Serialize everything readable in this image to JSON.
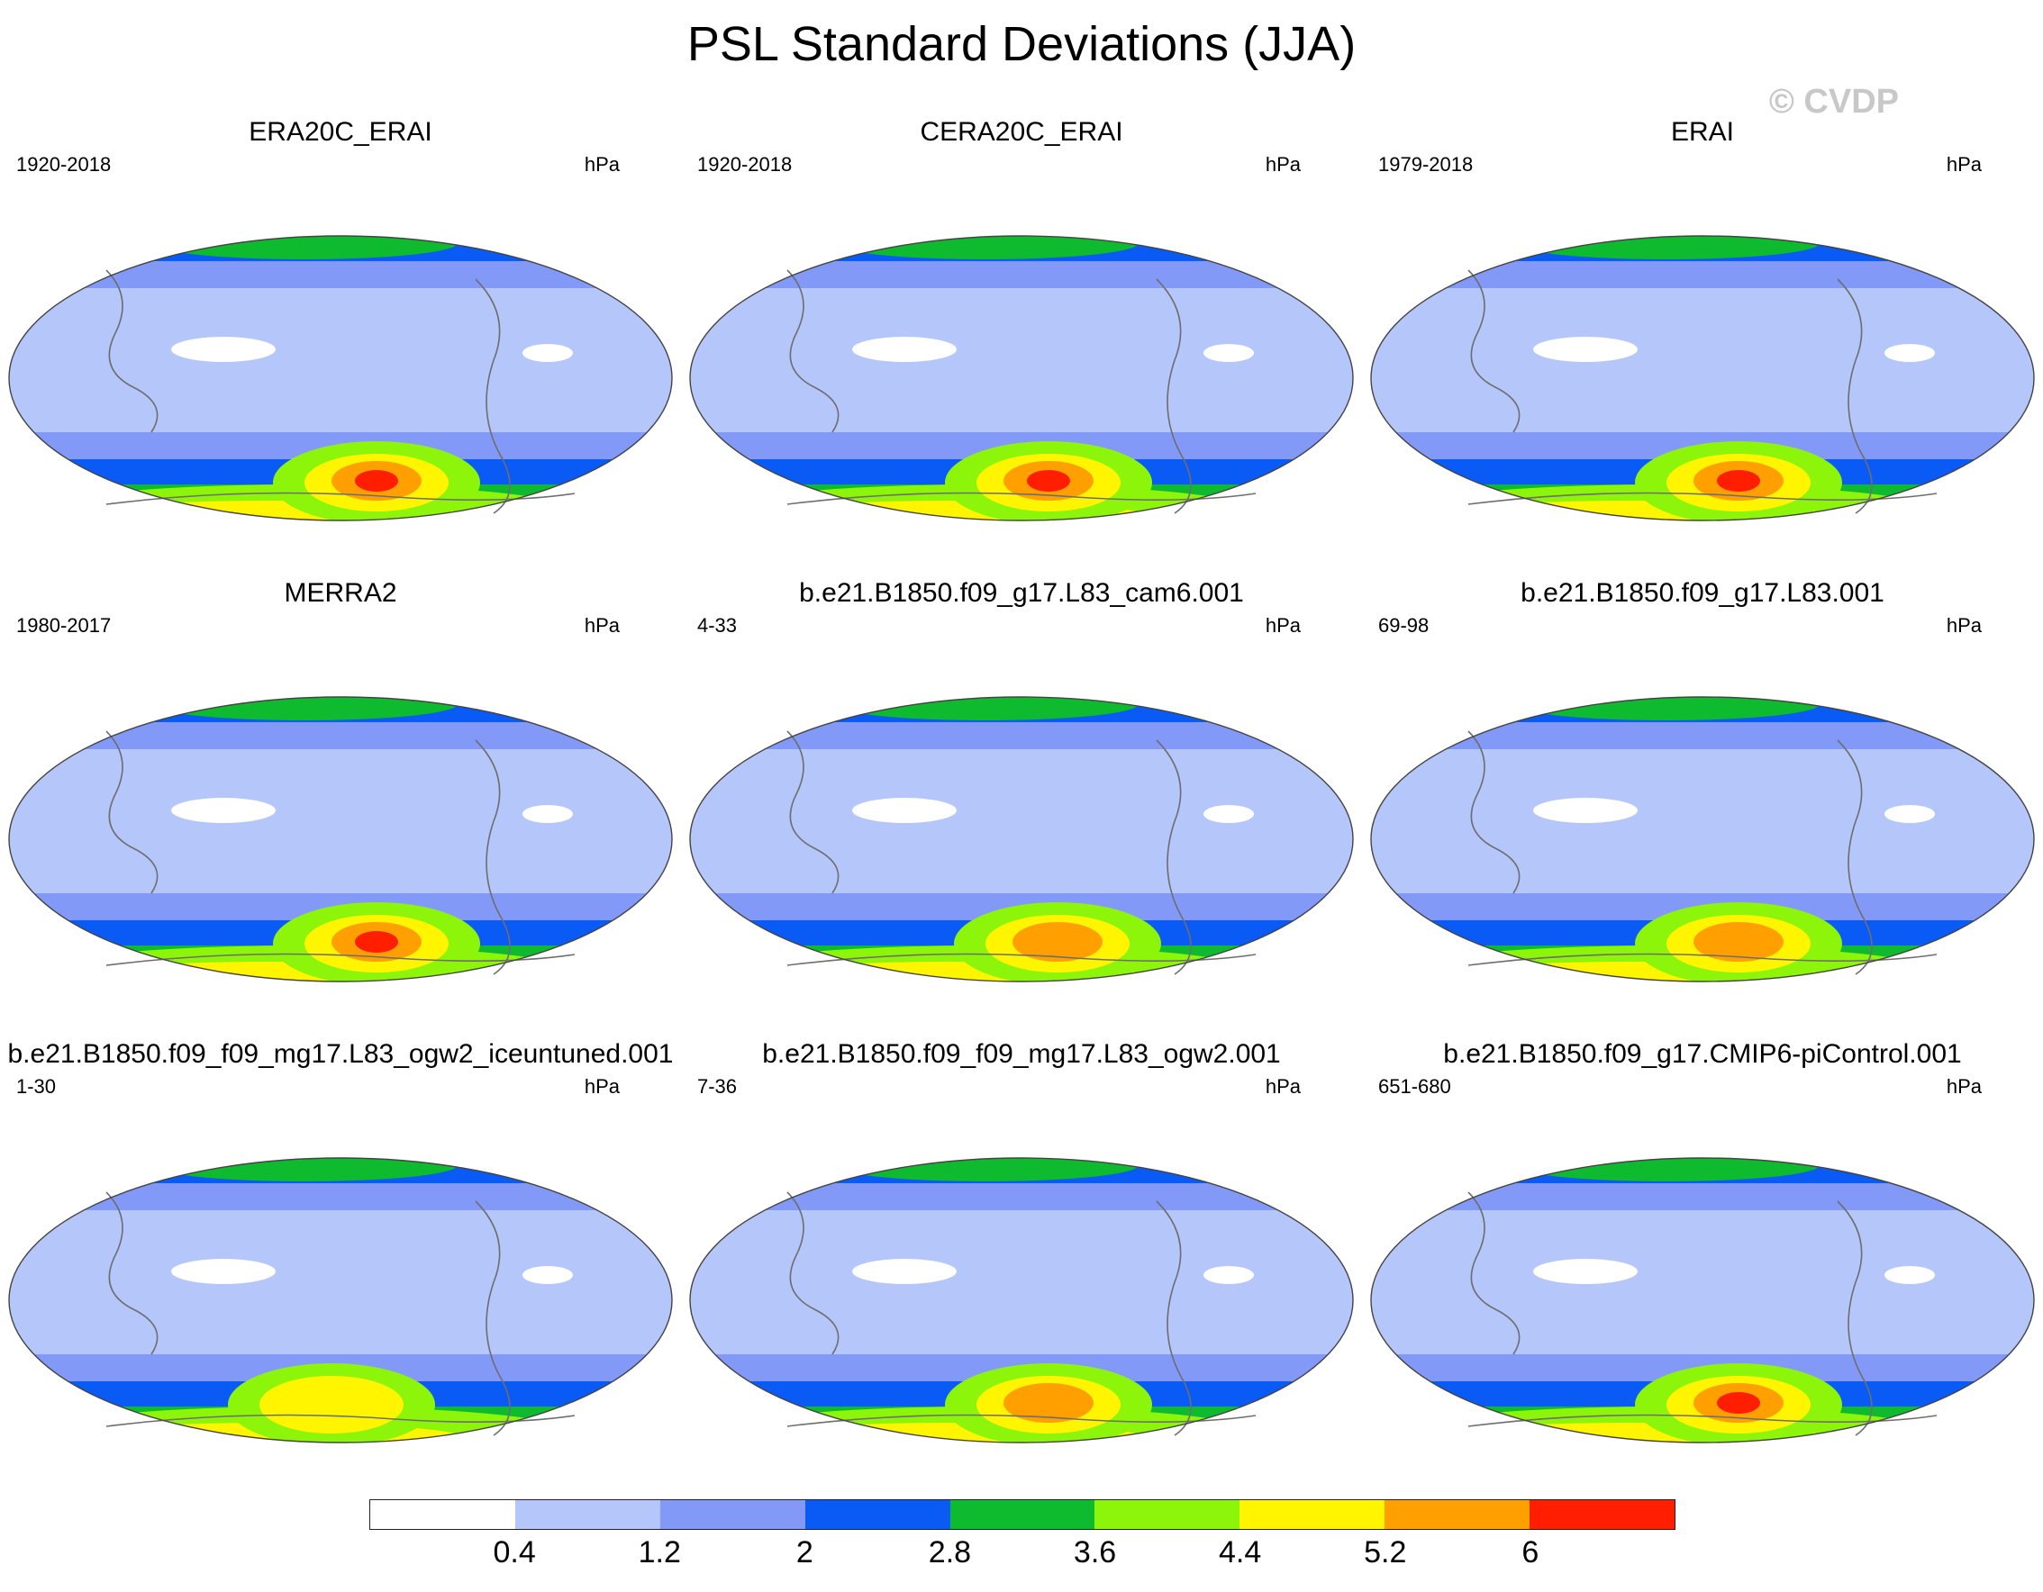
{
  "title": "PSL Standard Deviations (JJA)",
  "copyright": "© CVDP",
  "panels": [
    {
      "title": "ERA20C_ERAI",
      "period": "1920-2018",
      "units": "hPa",
      "peak": 6.4
    },
    {
      "title": "CERA20C_ERAI",
      "period": "1920-2018",
      "units": "hPa",
      "peak": 6.3
    },
    {
      "title": "ERAI",
      "period": "1979-2018",
      "units": "hPa",
      "peak": 6.2
    },
    {
      "title": "MERRA2",
      "period": "1980-2017",
      "units": "hPa",
      "peak": 6.3
    },
    {
      "title": "b.e21.B1850.f09_g17.L83_cam6.001",
      "period": "4-33",
      "units": "hPa",
      "peak": 5.6
    },
    {
      "title": "b.e21.B1850.f09_g17.L83.001",
      "period": "69-98",
      "units": "hPa",
      "peak": 5.4
    },
    {
      "title": "b.e21.B1850.f09_f09_mg17.L83_ogw2_iceuntuned.001",
      "period": "1-30",
      "units": "hPa",
      "peak": 5.0
    },
    {
      "title": "b.e21.B1850.f09_f09_mg17.L83_ogw2.001",
      "period": "7-36",
      "units": "hPa",
      "peak": 5.8
    },
    {
      "title": "b.e21.B1850.f09_g17.CMIP6-piControl.001",
      "period": "651-680",
      "units": "hPa",
      "peak": 6.3
    }
  ],
  "colorbar": {
    "levels": [
      "0.4",
      "1.2",
      "2",
      "2.8",
      "3.6",
      "4.4",
      "5.2",
      "6"
    ],
    "colors": [
      "#ffffff",
      "#b4c6fa",
      "#8299f8",
      "#0a5af5",
      "#0ebb2e",
      "#8cf50a",
      "#fff500",
      "#ffa000",
      "#ff1e00"
    ]
  }
}
